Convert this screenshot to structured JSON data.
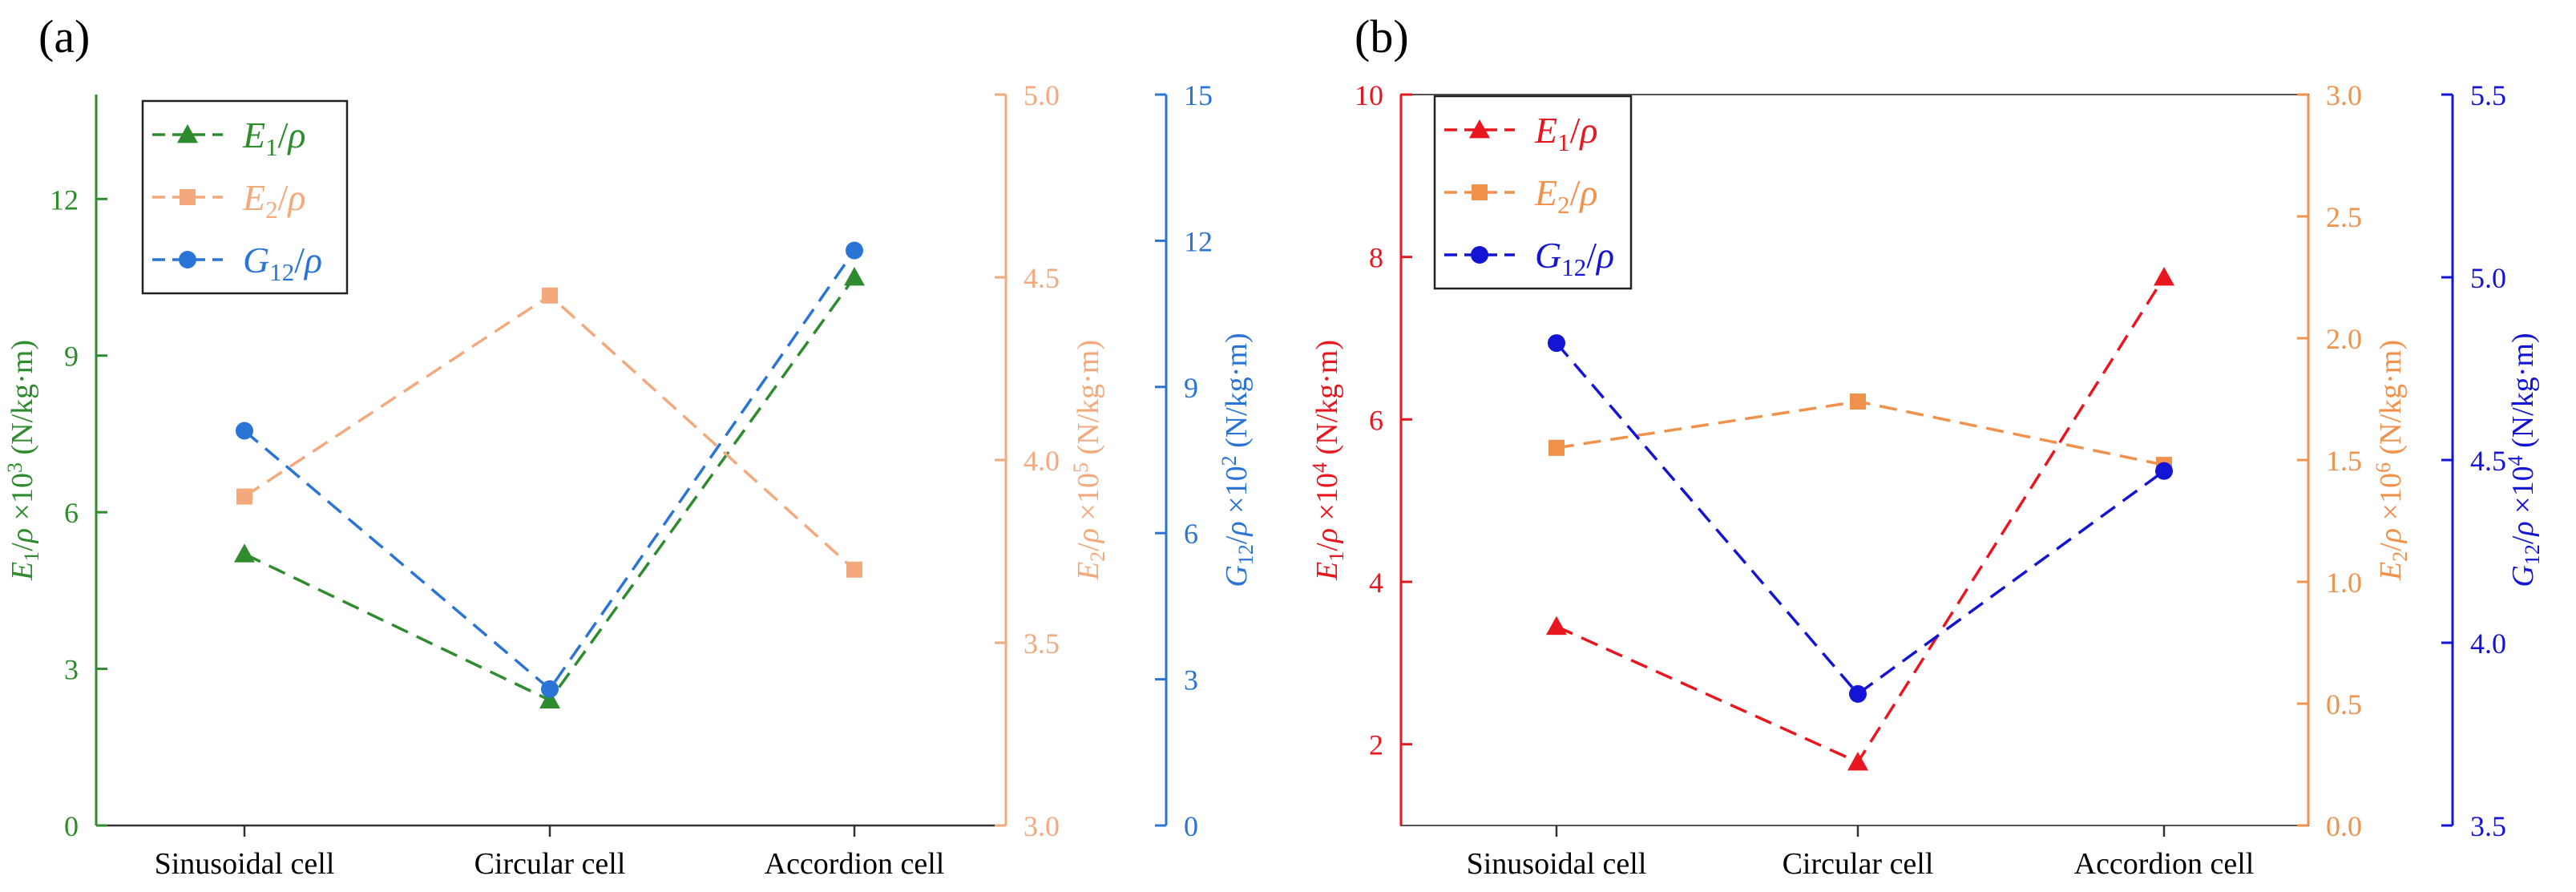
{
  "colors": {
    "green": "#2e8b2e",
    "orange": "#f4a97c",
    "blue_a": "#2a74d6",
    "red": "#e8171f",
    "orange_b": "#f0914c",
    "blue_b": "#1414d4",
    "black": "#000000"
  },
  "chart_data": [
    {
      "type": "line",
      "panel_label": "(a)",
      "categories": [
        "Sinusoidal cell",
        "Circular cell",
        "Accordion cell"
      ],
      "series": [
        {
          "name": "E1/ρ",
          "marker": "triangle",
          "axis": "left",
          "values": [
            5.2,
            2.4,
            10.5
          ]
        },
        {
          "name": "E2/ρ",
          "marker": "square",
          "axis": "right1",
          "values": [
            3.9,
            4.45,
            3.7
          ]
        },
        {
          "name": "G12/ρ",
          "marker": "circle",
          "axis": "right2",
          "values": [
            8.1,
            2.8,
            11.8
          ]
        }
      ],
      "axes": {
        "left": {
          "label": "E1/ρ ×10³ (N/kg·m)",
          "ylim": [
            0,
            14
          ],
          "ticks": [
            "0",
            "3",
            "6",
            "9",
            "12"
          ]
        },
        "right1": {
          "label": "E2/ρ ×10⁵ (N/kg·m)",
          "ylim": [
            3.0,
            5.0
          ],
          "ticks": [
            "3.0",
            "3.5",
            "4.0",
            "4.5",
            "5.0"
          ]
        },
        "right2": {
          "label": "G12/ρ ×10² (N/kg·m)",
          "ylim": [
            0,
            15
          ],
          "ticks": [
            "0",
            "3",
            "6",
            "9",
            "12",
            "15"
          ]
        }
      },
      "legend": [
        "E1/ρ",
        "E2/ρ",
        "G12/ρ"
      ],
      "legend_position": "top-left"
    },
    {
      "type": "line",
      "panel_label": "(b)",
      "categories": [
        "Sinusoidal cell",
        "Circular cell",
        "Accordion cell"
      ],
      "series": [
        {
          "name": "E1/ρ",
          "marker": "triangle",
          "axis": "left",
          "values": [
            3.45,
            1.78,
            7.75
          ]
        },
        {
          "name": "E2/ρ",
          "marker": "square",
          "axis": "right1",
          "values": [
            1.55,
            1.74,
            1.48
          ]
        },
        {
          "name": "G12/ρ",
          "marker": "circle",
          "axis": "right2",
          "values": [
            4.82,
            3.86,
            4.47
          ]
        }
      ],
      "axes": {
        "left": {
          "label": "E1/ρ ×10⁴ (N/kg·m)",
          "ylim": [
            1,
            10
          ],
          "ticks": [
            "2",
            "4",
            "6",
            "8",
            "10"
          ]
        },
        "right1": {
          "label": "E2/ρ ×10⁶ (N/kg·m)",
          "ylim": [
            0.0,
            3.0
          ],
          "ticks": [
            "0.0",
            "0.5",
            "1.0",
            "1.5",
            "2.0",
            "2.5",
            "3.0"
          ]
        },
        "right2": {
          "label": "G12/ρ ×10⁴ (N/kg·m)",
          "ylim": [
            3.5,
            5.5
          ],
          "ticks": [
            "3.5",
            "4.0",
            "4.5",
            "5.0",
            "5.5"
          ]
        }
      },
      "legend": [
        "E1/ρ",
        "E2/ρ",
        "G12/ρ"
      ],
      "legend_position": "top-left"
    }
  ]
}
